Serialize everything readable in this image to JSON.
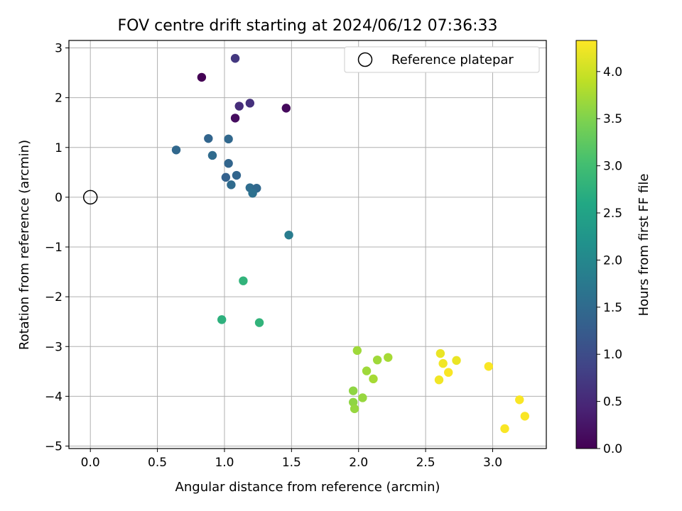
{
  "chart_data": {
    "type": "scatter",
    "title": "FOV centre drift starting at 2024/06/12 07:36:33",
    "xlabel": "Angular distance from reference (arcmin)",
    "ylabel": "Rotation from reference (arcmin)",
    "xlim": [
      -0.16,
      3.4
    ],
    "ylim": [
      -5.05,
      3.15
    ],
    "xticks": [
      0.0,
      0.5,
      1.0,
      1.5,
      2.0,
      2.5,
      3.0
    ],
    "xtick_labels": [
      "0.0",
      "0.5",
      "1.0",
      "1.5",
      "2.0",
      "2.5",
      "3.0"
    ],
    "yticks": [
      -5,
      -4,
      -3,
      -2,
      -1,
      0,
      1,
      2,
      3
    ],
    "ytick_labels": [
      "−5",
      "−4",
      "−3",
      "−2",
      "−1",
      "0",
      "1",
      "2",
      "3"
    ],
    "grid": true,
    "legend": {
      "placement": "top-right",
      "entries": [
        "Reference platepar"
      ]
    },
    "reference_point": {
      "x": 0.0,
      "y": 0.0,
      "label": "Reference platepar"
    },
    "colorbar": {
      "label": "Hours from first FF file",
      "colormap": "viridis",
      "range": [
        0.0,
        4.33
      ],
      "ticks": [
        0.0,
        0.5,
        1.0,
        1.5,
        2.0,
        2.5,
        3.0,
        3.5,
        4.0
      ],
      "tick_labels": [
        "0.0",
        "0.5",
        "1.0",
        "1.5",
        "2.0",
        "2.5",
        "3.0",
        "3.5",
        "4.0"
      ]
    },
    "points": [
      {
        "x": 0.83,
        "y": 2.41,
        "c": 0.0
      },
      {
        "x": 1.08,
        "y": 2.79,
        "c": 0.7
      },
      {
        "x": 1.46,
        "y": 1.79,
        "c": 0.1
      },
      {
        "x": 1.08,
        "y": 1.59,
        "c": 0.15
      },
      {
        "x": 1.11,
        "y": 1.83,
        "c": 0.55
      },
      {
        "x": 1.19,
        "y": 1.89,
        "c": 0.6
      },
      {
        "x": 0.64,
        "y": 0.95,
        "c": 1.45
      },
      {
        "x": 0.88,
        "y": 1.18,
        "c": 1.4
      },
      {
        "x": 1.03,
        "y": 1.17,
        "c": 1.45
      },
      {
        "x": 0.91,
        "y": 0.84,
        "c": 1.5
      },
      {
        "x": 1.03,
        "y": 0.68,
        "c": 1.4
      },
      {
        "x": 1.01,
        "y": 0.4,
        "c": 1.35
      },
      {
        "x": 1.09,
        "y": 0.44,
        "c": 1.4
      },
      {
        "x": 1.05,
        "y": 0.25,
        "c": 1.5
      },
      {
        "x": 1.19,
        "y": 0.19,
        "c": 1.55
      },
      {
        "x": 1.24,
        "y": 0.18,
        "c": 1.45
      },
      {
        "x": 1.21,
        "y": 0.08,
        "c": 1.6
      },
      {
        "x": 1.48,
        "y": -0.76,
        "c": 1.8
      },
      {
        "x": 1.14,
        "y": -1.68,
        "c": 2.8
      },
      {
        "x": 0.98,
        "y": -2.46,
        "c": 2.75
      },
      {
        "x": 1.26,
        "y": -2.52,
        "c": 2.8
      },
      {
        "x": 1.99,
        "y": -3.08,
        "c": 3.7
      },
      {
        "x": 2.14,
        "y": -3.27,
        "c": 3.7
      },
      {
        "x": 2.22,
        "y": -3.22,
        "c": 3.75
      },
      {
        "x": 2.06,
        "y": -3.49,
        "c": 3.7
      },
      {
        "x": 2.11,
        "y": -3.65,
        "c": 3.75
      },
      {
        "x": 1.96,
        "y": -3.89,
        "c": 3.6
      },
      {
        "x": 2.03,
        "y": -4.03,
        "c": 3.65
      },
      {
        "x": 1.96,
        "y": -4.12,
        "c": 3.6
      },
      {
        "x": 1.97,
        "y": -4.25,
        "c": 3.65
      },
      {
        "x": 2.61,
        "y": -3.14,
        "c": 4.2
      },
      {
        "x": 2.63,
        "y": -3.34,
        "c": 4.25
      },
      {
        "x": 2.73,
        "y": -3.28,
        "c": 4.2
      },
      {
        "x": 2.67,
        "y": -3.52,
        "c": 4.3
      },
      {
        "x": 2.6,
        "y": -3.67,
        "c": 4.25
      },
      {
        "x": 2.97,
        "y": -3.4,
        "c": 4.3
      },
      {
        "x": 3.2,
        "y": -4.07,
        "c": 4.3
      },
      {
        "x": 3.24,
        "y": -4.4,
        "c": 4.3
      },
      {
        "x": 3.09,
        "y": -4.65,
        "c": 4.3
      }
    ]
  }
}
